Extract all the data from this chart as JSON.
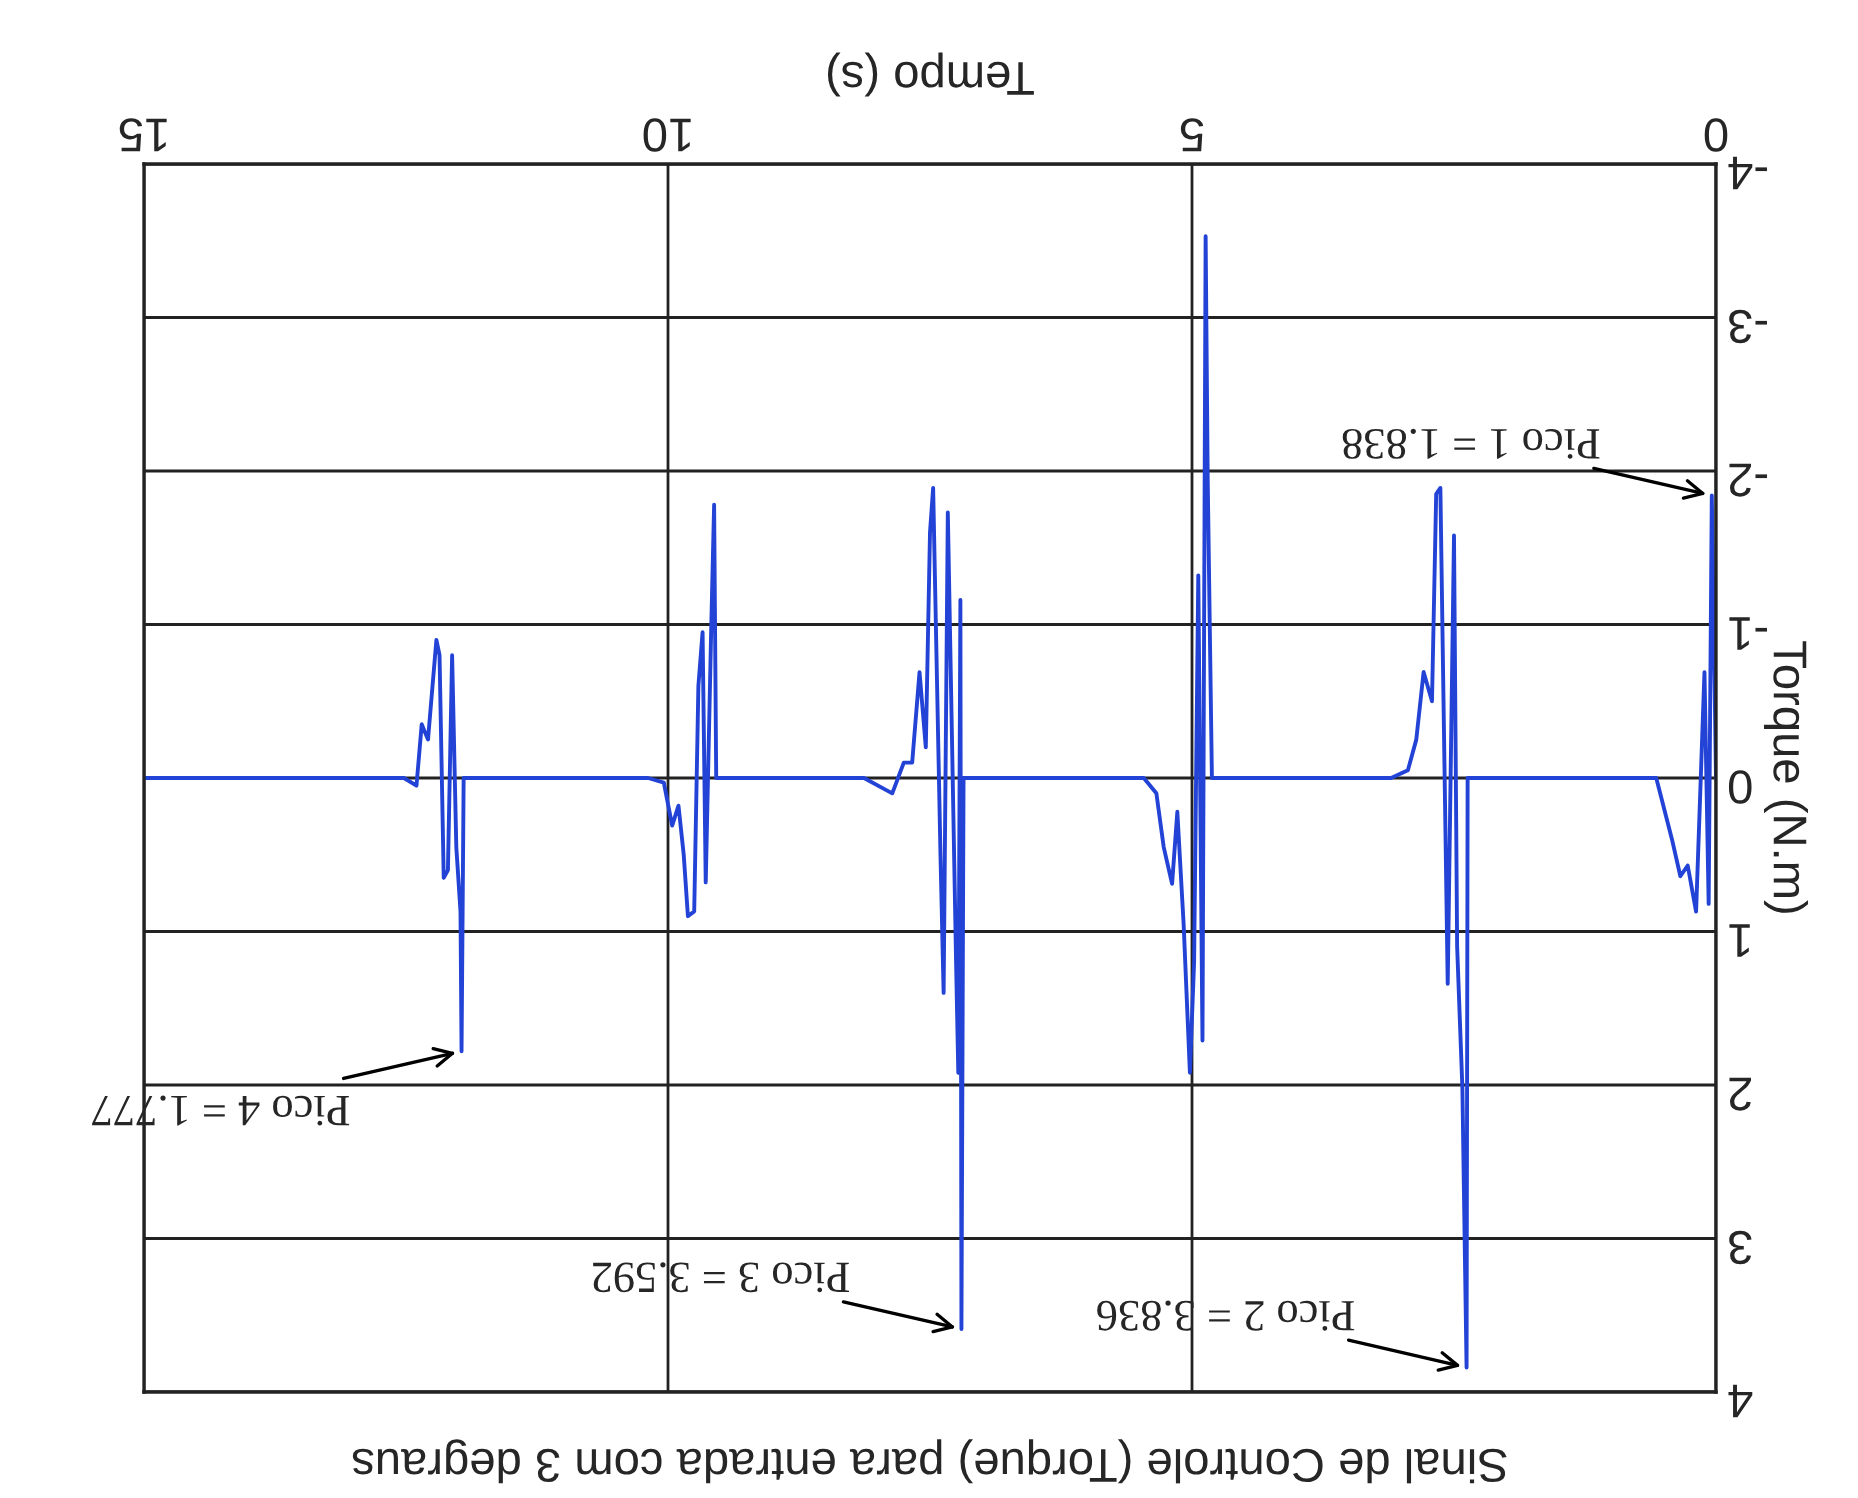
{
  "chart_data": {
    "type": "line",
    "title": "Sinal de Controle (Torque) para entrada com 3 degraus",
    "xlabel": "Tempo (s)",
    "ylabel": "Torque (N.m)",
    "series": [
      {
        "color": "#2343d6",
        "x": [
          0,
          0.04,
          0.07,
          0.11,
          0.19,
          0.27,
          0.34,
          0.42,
          0.57,
          0.8,
          2.37,
          2.38,
          2.42,
          2.47,
          2.5,
          2.56,
          2.6,
          2.63,
          2.67,
          2.71,
          2.79,
          2.86,
          2.94,
          3.1,
          4.81,
          4.85,
          4.87,
          4.9,
          4.94,
          4.98,
          5.02,
          5.08,
          5.14,
          5.19,
          5.27,
          5.34,
          5.46,
          7.18,
          7.2,
          7.21,
          7.23,
          7.25,
          7.33,
          7.37,
          7.4,
          7.47,
          7.5,
          7.54,
          7.6,
          7.67,
          7.75,
          7.86,
          8.13,
          9.54,
          9.56,
          9.59,
          9.64,
          9.67,
          9.71,
          9.75,
          9.81,
          9.85,
          9.9,
          9.96,
          10.04,
          10.19,
          11.95,
          11.97,
          11.98,
          12.02,
          12.06,
          12.1,
          12.14,
          12.18,
          12.21,
          12.29,
          12.35,
          12.4,
          12.52,
          15
        ],
        "values": [
          0,
          -1.84,
          0.82,
          -0.69,
          0.87,
          0.57,
          0.64,
          0.4,
          0,
          0,
          0,
          3.84,
          2.02,
          1.1,
          -1.58,
          1.34,
          -0.5,
          -1.89,
          -1.85,
          -0.5,
          -0.69,
          -0.25,
          -0.05,
          0,
          0,
          -1.94,
          -3.53,
          1.71,
          -1.32,
          1.2,
          1.92,
          0.95,
          0.22,
          0.69,
          0.45,
          0.1,
          0,
          0,
          3.59,
          -1.16,
          1.92,
          1.24,
          -1.73,
          1.4,
          0.5,
          -1.89,
          -1.6,
          -0.2,
          -0.69,
          -0.1,
          -0.1,
          0.1,
          0,
          0,
          -1.78,
          -0.9,
          0.68,
          -0.95,
          -0.6,
          0.87,
          0.9,
          0.5,
          0.18,
          0.31,
          0.03,
          0,
          0,
          1.78,
          0.87,
          0.45,
          -0.8,
          0.6,
          0.65,
          -0.8,
          -0.9,
          -0.25,
          -0.35,
          0.05,
          0,
          0
        ]
      }
    ],
    "xlim": [
      15,
      0
    ],
    "xticks": [
      0,
      5,
      10,
      15
    ],
    "ylim": [
      4,
      -4
    ],
    "yticks": [
      -4,
      -3,
      -2,
      -1,
      0,
      1,
      2,
      3,
      4
    ],
    "grid": true,
    "legend": false,
    "marker": "none",
    "line_style": "solid",
    "annotations": [
      {
        "text": "Pico 1 = 1.838",
        "x": 0.04,
        "y": -1.84
      },
      {
        "text": "Pico 2 = 3.836",
        "x": 2.38,
        "y": 3.84
      },
      {
        "text": "Pico 3 = 3.592",
        "x": 7.2,
        "y": 3.59
      },
      {
        "text": "Pico 4 = 1.777",
        "x": 11.97,
        "y": 1.78
      }
    ]
  }
}
